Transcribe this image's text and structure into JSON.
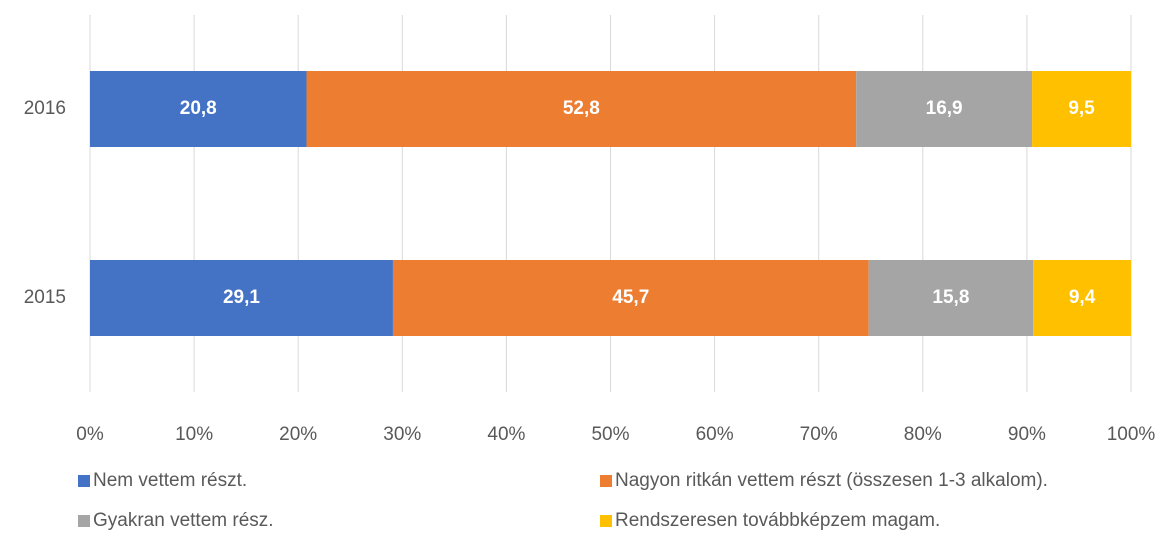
{
  "chart_data": {
    "type": "stacked_barh",
    "categories": [
      "2016",
      "2015"
    ],
    "series": [
      {
        "name": "Nem vettem részt.",
        "color": "#4472c4",
        "values": [
          20.8,
          29.1
        ],
        "value_labels": [
          "20,8",
          "29,1"
        ]
      },
      {
        "name": "Nagyon ritkán vettem részt (összesen 1-3 alkalom).",
        "color": "#ed7d31",
        "values": [
          52.8,
          45.7
        ],
        "value_labels": [
          "52,8",
          "45,7"
        ]
      },
      {
        "name": "Gyakran vettem rész.",
        "color": "#a5a5a5",
        "values": [
          16.9,
          15.8
        ],
        "value_labels": [
          "16,9",
          "15,8"
        ]
      },
      {
        "name": "Rendszeresen továbbképzem magam.",
        "color": "#ffc000",
        "values": [
          9.5,
          9.4
        ],
        "value_labels": [
          "9,5",
          "9,4"
        ]
      }
    ],
    "xlim": [
      0,
      100
    ],
    "xticks": [
      {
        "value": 0,
        "label": "0%"
      },
      {
        "value": 10,
        "label": "10%"
      },
      {
        "value": 20,
        "label": "20%"
      },
      {
        "value": 30,
        "label": "30%"
      },
      {
        "value": 40,
        "label": "40%"
      },
      {
        "value": 50,
        "label": "50%"
      },
      {
        "value": 60,
        "label": "60%"
      },
      {
        "value": 70,
        "label": "70%"
      },
      {
        "value": 80,
        "label": "80%"
      },
      {
        "value": 90,
        "label": "90%"
      },
      {
        "value": 100,
        "label": "100%"
      }
    ],
    "grid": true,
    "legend": "bottom"
  }
}
